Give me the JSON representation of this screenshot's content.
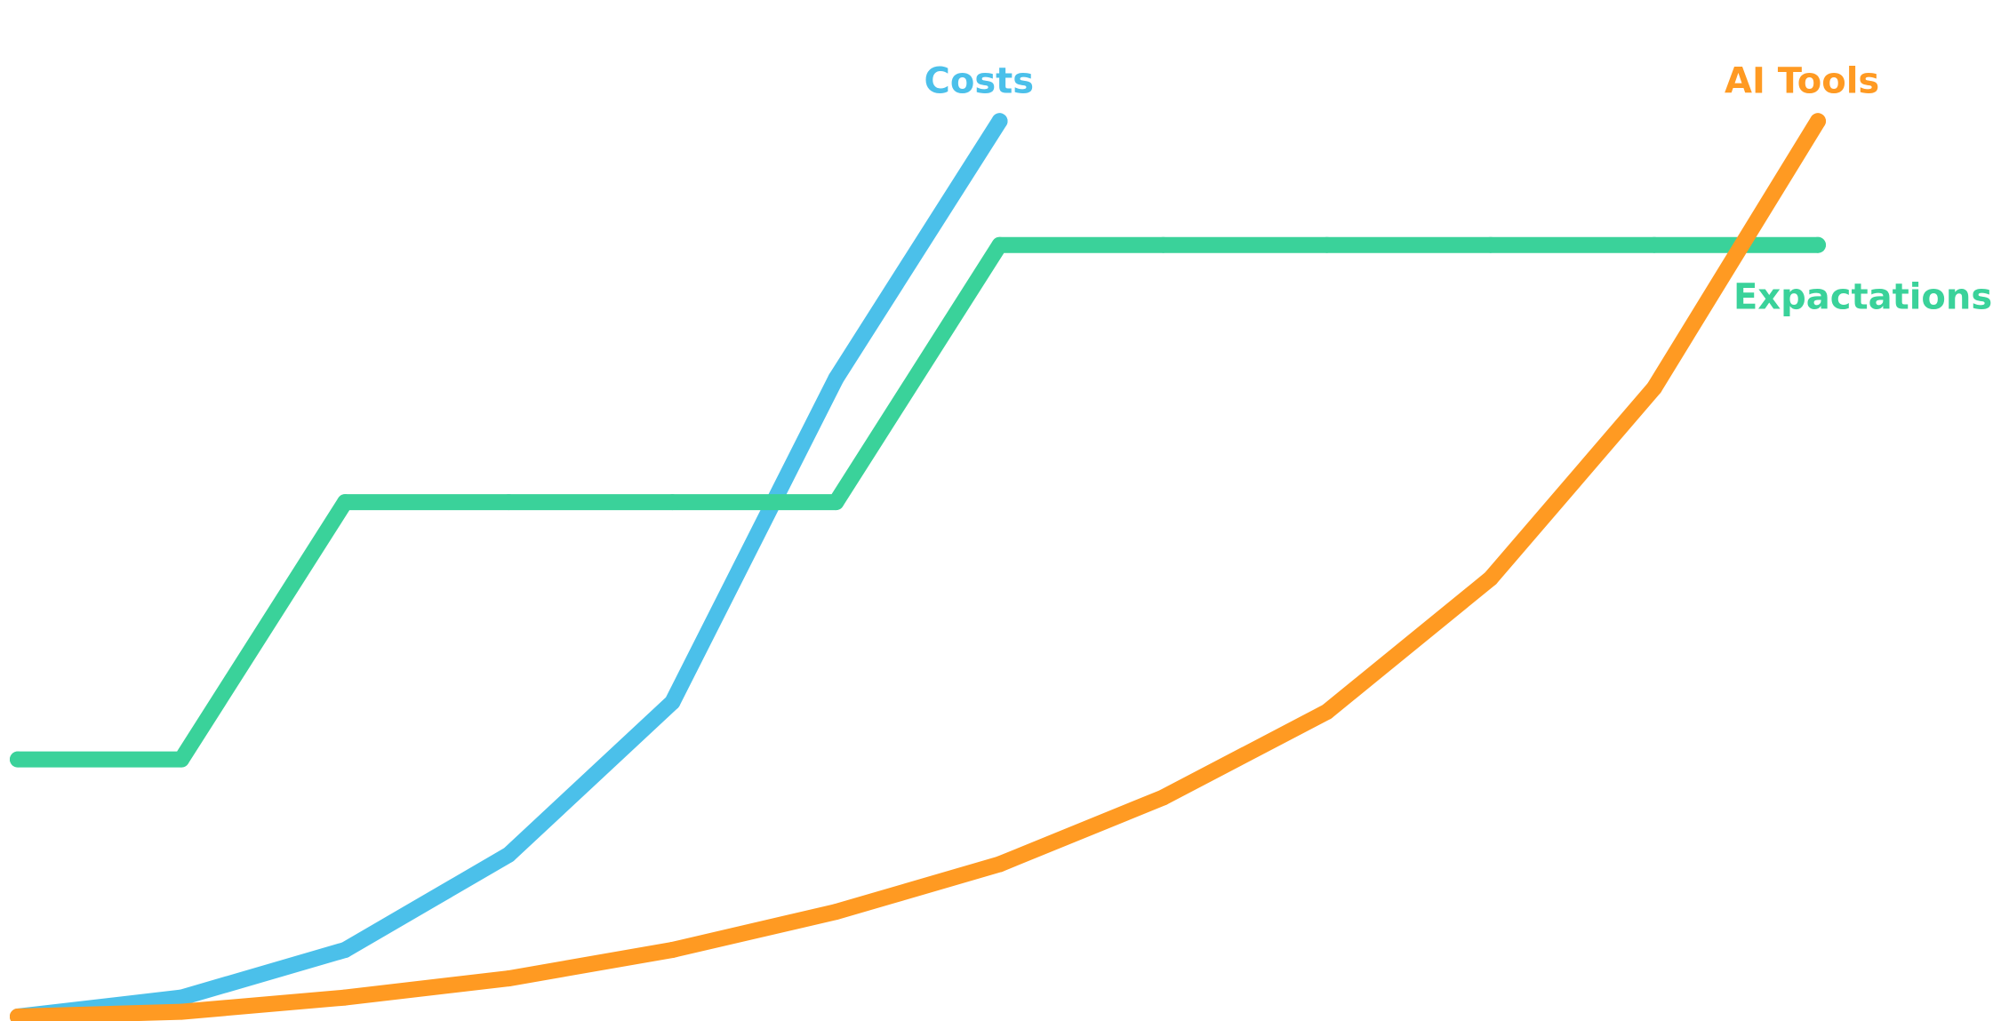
{
  "chart_data": {
    "type": "line",
    "title": "",
    "xlabel": "",
    "ylabel": "",
    "grid": false,
    "xlim": [
      0,
      12
    ],
    "ylim": [
      0,
      100
    ],
    "series": [
      {
        "name": "Costs",
        "color": "#4BC0EA",
        "x": [
          0,
          1,
          2,
          3,
          4,
          5,
          6
        ],
        "values": [
          0,
          2,
          7,
          17,
          33,
          67,
          94
        ]
      },
      {
        "name": "Expactations",
        "color": "#3AD29A",
        "x": [
          0,
          1,
          2,
          3,
          4,
          5,
          6,
          7,
          8,
          9,
          10,
          11
        ],
        "values": [
          27,
          27,
          54,
          54,
          54,
          54,
          81,
          81,
          81,
          81,
          81,
          81
        ]
      },
      {
        "name": "AI Tools",
        "color": "#FF9A22",
        "x": [
          0,
          1,
          2,
          3,
          4,
          5,
          6,
          7,
          8,
          9,
          10,
          11
        ],
        "values": [
          0,
          0.5,
          2,
          4,
          7,
          11,
          16,
          23,
          32,
          46,
          66,
          94
        ]
      }
    ]
  }
}
